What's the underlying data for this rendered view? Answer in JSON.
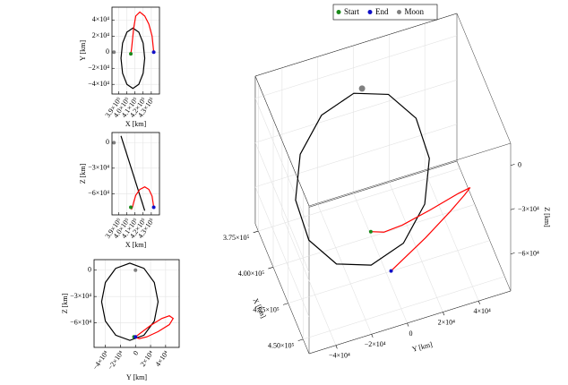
{
  "chart_data": [
    {
      "type": "line",
      "xlabel": "X [km]",
      "ylabel": "Y [km]",
      "grid": true,
      "xlim": [
        382000,
        440000
      ],
      "xticks": [
        {
          "value": 390000,
          "label": "3.9×10⁵"
        },
        {
          "value": 400000,
          "label": "4.0×10⁵"
        },
        {
          "value": 410000,
          "label": "4.1×10⁵"
        },
        {
          "value": 420000,
          "label": "4.2×10⁵"
        },
        {
          "value": 430000,
          "label": "4.3×10⁵"
        }
      ],
      "ylim": [
        -52000,
        56000
      ],
      "yticks": [
        {
          "value": -40000,
          "label": "−4×10⁴"
        },
        {
          "value": -20000,
          "label": "−2×10⁴"
        },
        0,
        {
          "value": 20000,
          "label": "2×10⁴"
        },
        {
          "value": 40000,
          "label": "4×10⁴"
        }
      ],
      "series": [
        {
          "mode": "line",
          "closed": true,
          "color": "#000000",
          "x": [
            407500,
            400250,
            394940,
            393000,
            394940,
            400250,
            407500,
            414750,
            420060,
            422000,
            420060,
            414750
          ],
          "y": [
            30000,
            24975,
            11250,
            -7500,
            -26250,
            -39975,
            -45000,
            -39975,
            -26250,
            -7500,
            11250,
            24975
          ]
        },
        {
          "mode": "line",
          "color": "#ff0000",
          "x": [
            405000,
            406000,
            407000,
            408500,
            411000,
            416000,
            422000,
            427000,
            431000,
            433000
          ],
          "y": [
            -2000,
            5000,
            15000,
            30000,
            45000,
            50000,
            45000,
            35000,
            20000,
            0
          ]
        },
        {
          "mode": "markers",
          "color": "#1a8a1a",
          "x": [
            405000
          ],
          "y": [
            -2000
          ]
        },
        {
          "mode": "markers",
          "color": "#1010c8",
          "x": [
            433000
          ],
          "y": [
            0
          ]
        },
        {
          "mode": "markers",
          "color": "#808080",
          "x": [
            384400
          ],
          "y": [
            0
          ]
        }
      ]
    },
    {
      "type": "line",
      "xlabel": "X [km]",
      "ylabel": "Z [km]",
      "grid": true,
      "xlim": [
        382000,
        440000
      ],
      "xticks": [
        {
          "value": 390000,
          "label": "3.9×10⁵"
        },
        {
          "value": 400000,
          "label": "4.0×10⁵"
        },
        {
          "value": 410000,
          "label": "4.1×10⁵"
        },
        {
          "value": 420000,
          "label": "4.2×10⁵"
        },
        {
          "value": 430000,
          "label": "4.3×10⁵"
        }
      ],
      "ylim": [
        -85000,
        12000
      ],
      "yticks": [
        {
          "value": -60000,
          "label": "−6×10⁴"
        },
        {
          "value": -30000,
          "label": "−3×10⁴"
        },
        0
      ],
      "series": [
        {
          "mode": "line",
          "closed": true,
          "color": "#000000",
          "x": [
            407500,
            400250,
            394940,
            393000,
            394940,
            400250,
            407500,
            414750,
            420060,
            422000,
            420060,
            414750
          ],
          "y": [
            -36000,
            -14000,
            2100,
            8000,
            2100,
            -14000,
            -36000,
            -58000,
            -74100,
            -80000,
            -74100,
            -58000
          ]
        },
        {
          "mode": "line",
          "color": "#ff0000",
          "x": [
            405000,
            406000,
            407000,
            408500,
            411000,
            416000,
            422000,
            427000,
            431000,
            433000
          ],
          "y": [
            -76000,
            -78000,
            -76000,
            -70000,
            -62000,
            -55000,
            -52000,
            -55000,
            -63000,
            -76000
          ]
        },
        {
          "mode": "markers",
          "color": "#1a8a1a",
          "x": [
            405000
          ],
          "y": [
            -76000
          ]
        },
        {
          "mode": "markers",
          "color": "#1010c8",
          "x": [
            433000
          ],
          "y": [
            -76000
          ]
        },
        {
          "mode": "markers",
          "color": "#808080",
          "x": [
            384400
          ],
          "y": [
            0
          ]
        }
      ]
    },
    {
      "type": "line",
      "xlabel": "Y [km]",
      "ylabel": "Z [km]",
      "grid": true,
      "xlim": [
        -55000,
        58000
      ],
      "xticks": [
        {
          "value": -40000,
          "label": "−4×10⁴"
        },
        {
          "value": -20000,
          "label": "−2×10⁴"
        },
        0,
        {
          "value": 20000,
          "label": "2×10⁴"
        },
        {
          "value": 40000,
          "label": "4×10⁴"
        }
      ],
      "ylim": [
        -88000,
        12000
      ],
      "yticks": [
        {
          "value": -60000,
          "label": "−6×10⁴"
        },
        {
          "value": -30000,
          "label": "−3×10⁴"
        },
        0
      ],
      "series": [
        {
          "mode": "line",
          "closed": true,
          "color": "#000000",
          "x": [
            30000,
            24975,
            11250,
            -7500,
            -26250,
            -39975,
            -45000,
            -39975,
            -26250,
            -7500,
            11250,
            24975
          ],
          "y": [
            -36000,
            -14000,
            2100,
            8000,
            2100,
            -14000,
            -36000,
            -58000,
            -74100,
            -80000,
            -74100,
            -58000
          ]
        },
        {
          "mode": "line",
          "color": "#ff0000",
          "x": [
            -2000,
            5000,
            15000,
            30000,
            45000,
            50000,
            45000,
            35000,
            20000,
            0
          ],
          "y": [
            -76000,
            -78000,
            -76000,
            -70000,
            -62000,
            -55000,
            -52000,
            -55000,
            -63000,
            -76000
          ]
        },
        {
          "mode": "markers",
          "color": "#1a8a1a",
          "x": [
            -2000
          ],
          "y": [
            -76000
          ]
        },
        {
          "mode": "markers",
          "color": "#1010c8",
          "x": [
            0
          ],
          "y": [
            -76000
          ]
        },
        {
          "mode": "markers",
          "color": "#808080",
          "x": [
            0
          ],
          "y": [
            0
          ]
        }
      ]
    },
    {
      "type": "line3d",
      "xlabel": "X [km]",
      "ylabel": "Y [km]",
      "zlabel": "Z [km]",
      "grid": true,
      "legend": "upper center",
      "xlim": [
        370000,
        460000
      ],
      "xticks": [
        {
          "value": 375000,
          "label": "3.75×10⁵"
        },
        {
          "value": 400000,
          "label": "4.00×10⁵"
        },
        {
          "value": 425000,
          "label": "4.25×10⁵"
        },
        {
          "value": 450000,
          "label": "4.50×10⁵"
        }
      ],
      "ylim": [
        -55000,
        58000
      ],
      "yticks": [
        {
          "value": -40000,
          "label": "−4×10⁴"
        },
        {
          "value": -20000,
          "label": "−2×10⁴"
        },
        0,
        {
          "value": 20000,
          "label": "2×10⁴"
        },
        {
          "value": 40000,
          "label": "4×10⁴"
        }
      ],
      "zlim": [
        -85000,
        15000
      ],
      "zticks": [
        {
          "value": -60000,
          "label": "−6×10⁴"
        },
        {
          "value": -30000,
          "label": "−3×10⁴"
        },
        0
      ],
      "series": [
        {
          "mode": "line",
          "closed": true,
          "color": "#000000",
          "x": [
            407500,
            400250,
            394940,
            393000,
            394940,
            400250,
            407500,
            414750,
            420060,
            422000,
            420060,
            414750
          ],
          "y": [
            30000,
            24975,
            11250,
            -7500,
            -26250,
            -39975,
            -45000,
            -39975,
            -26250,
            -7500,
            11250,
            24975
          ],
          "z": [
            -36000,
            -14000,
            2100,
            8000,
            2100,
            -14000,
            -36000,
            -58000,
            -74100,
            -80000,
            -74100,
            -58000
          ]
        },
        {
          "mode": "line",
          "color": "#ff0000",
          "x": [
            405000,
            406000,
            407000,
            408500,
            411000,
            416000,
            422000,
            427000,
            431000,
            433000
          ],
          "y": [
            -2000,
            5000,
            15000,
            30000,
            45000,
            50000,
            45000,
            35000,
            20000,
            0
          ],
          "z": [
            -76000,
            -78000,
            -76000,
            -70000,
            -62000,
            -55000,
            -52000,
            -55000,
            -63000,
            -76000
          ]
        },
        {
          "mode": "markers",
          "name": "Start",
          "color": "#1a8a1a",
          "x": [
            405000
          ],
          "y": [
            -2000
          ],
          "z": [
            -76000
          ]
        },
        {
          "mode": "markers",
          "name": "End",
          "color": "#1010c8",
          "x": [
            433000
          ],
          "y": [
            0
          ],
          "z": [
            -76000
          ]
        },
        {
          "mode": "markers",
          "name": "Moon",
          "color": "#808080",
          "x": [
            384400
          ],
          "y": [
            0
          ],
          "z": [
            0
          ]
        }
      ]
    }
  ]
}
